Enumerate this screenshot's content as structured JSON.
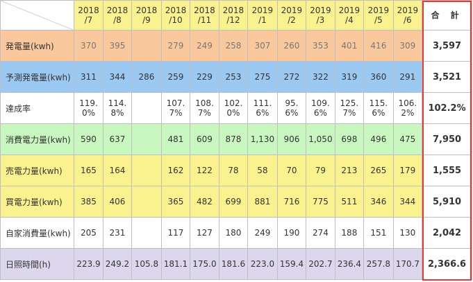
{
  "table": {
    "months": [
      "2018\n/7",
      "2018\n/8",
      "2018\n/9",
      "2018\n/10",
      "2018\n/11",
      "2018\n/12",
      "2019\n/1",
      "2019\n/2",
      "2019\n/3",
      "2019\n/4",
      "2019\n/5",
      "2019\n/6"
    ],
    "total_header": "合 計",
    "rows": [
      {
        "key": "r-hatsu",
        "label": "発電量(kwh)",
        "values": [
          "370",
          "395",
          "",
          "279",
          "249",
          "258",
          "307",
          "260",
          "353",
          "401",
          "416",
          "309"
        ],
        "total": "3,597"
      },
      {
        "key": "r-yosoku",
        "label": "予測発電量(kwh)",
        "values": [
          "311",
          "344",
          "286",
          "259",
          "229",
          "253",
          "275",
          "272",
          "322",
          "319",
          "360",
          "291"
        ],
        "total": "3,521"
      },
      {
        "key": "r-tassei",
        "label": "達成率",
        "values": [
          "119.\n0%",
          "114.\n8%",
          "",
          "107.\n7%",
          "108.\n7%",
          "102.\n0%",
          "111.\n6%",
          "95.\n6%",
          "109.\n6%",
          "125.\n7%",
          "115.\n6%",
          "106.\n2%"
        ],
        "total": "102.2%"
      },
      {
        "key": "r-shohi",
        "label": "消費電力量(kwh)",
        "values": [
          "590",
          "637",
          "",
          "481",
          "609",
          "878",
          "1,130",
          "906",
          "1,050",
          "698",
          "496",
          "475"
        ],
        "total": "7,950"
      },
      {
        "key": "r-bai",
        "label": "売電力量(kwh)",
        "values": [
          "165",
          "164",
          "",
          "162",
          "122",
          "78",
          "58",
          "70",
          "79",
          "213",
          "265",
          "179"
        ],
        "total": "1,555"
      },
      {
        "key": "r-kai",
        "label": "買電力量(kwh)",
        "values": [
          "385",
          "406",
          "",
          "365",
          "482",
          "699",
          "881",
          "716",
          "775",
          "511",
          "346",
          "344"
        ],
        "total": "5,910"
      },
      {
        "key": "r-jika",
        "label": "自家消費量(kwh)",
        "values": [
          "205",
          "231",
          "",
          "117",
          "127",
          "180",
          "249",
          "190",
          "274",
          "188",
          "151",
          "130"
        ],
        "total": "2,042"
      },
      {
        "key": "r-nissho",
        "label": "日照時間(h)",
        "values": [
          "223.9",
          "249.2",
          "105.8",
          "181.1",
          "175.0",
          "181.6",
          "223.0",
          "159.4",
          "202.7",
          "236.4",
          "257.8",
          "170.7"
        ],
        "total": "2,366.6"
      }
    ]
  },
  "colors": {
    "header_yellow": "#faf28f",
    "generation": "#f9c89d",
    "forecast": "#9cc9f2",
    "consumption": "#c9f7c0",
    "sell_buy": "#faf28f",
    "sunshine": "#dcd7ec",
    "total_frame": "#e33a36"
  }
}
